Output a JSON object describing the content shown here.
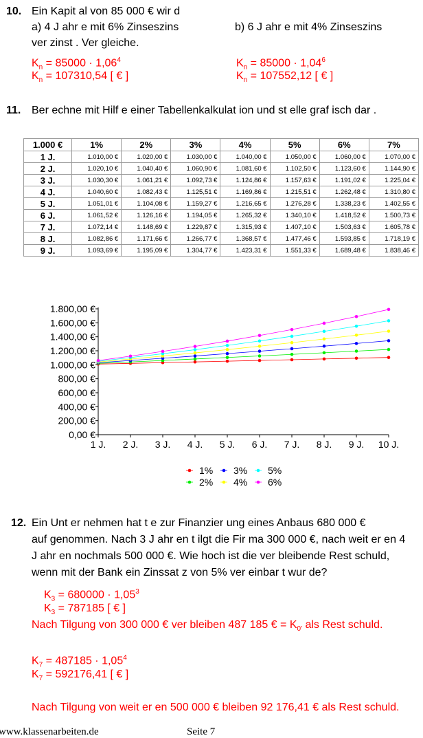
{
  "task10": {
    "number": "10.",
    "intro": "Ein Kapit al von 85 000 € wir d",
    "a_label": "a) 4 J ahr e mit 6% Zinseszins",
    "b_label": "b) 6 J ahr e mit 4% Zinseszins",
    "line3": "ver zinst . Ver gleiche.",
    "a_formula": {
      "lhs": "K",
      "sub": "n",
      "rhs": " = 85000 · 1,06",
      "sup": "4"
    },
    "a_result": {
      "lhs": "K",
      "sub": "n",
      "rhs": " = 107310,54 [ € ]"
    },
    "b_formula": {
      "lhs": "K",
      "sub": "n",
      "rhs": " = 85000 · 1,04",
      "sup": "6"
    },
    "b_result": {
      "lhs": "K",
      "sub": "n",
      "rhs": " = 107552,12 [ € ]"
    }
  },
  "task11": {
    "number": "11.",
    "text": "Ber echne mit Hilf e einer Tabellenkalkulat ion und st elle graf isch dar ."
  },
  "table": {
    "corner": "1.000 €",
    "columns": [
      "1%",
      "2%",
      "3%",
      "4%",
      "5%",
      "6%",
      "7%"
    ],
    "rows": [
      {
        "label": "1 J.",
        "values": [
          "1.010,00 €",
          "1.020,00 €",
          "1.030,00 €",
          "1.040,00 €",
          "1.050,00 €",
          "1.060,00 €",
          "1.070,00 €"
        ]
      },
      {
        "label": "2 J.",
        "values": [
          "1.020,10 €",
          "1.040,40 €",
          "1.060,90 €",
          "1.081,60 €",
          "1.102,50 €",
          "1.123,60 €",
          "1.144,90 €"
        ]
      },
      {
        "label": "3 J.",
        "values": [
          "1.030,30 €",
          "1.061,21 €",
          "1.092,73 €",
          "1.124,86 €",
          "1.157,63 €",
          "1.191,02 €",
          "1.225,04 €"
        ]
      },
      {
        "label": "4 J.",
        "values": [
          "1.040,60 €",
          "1.082,43 €",
          "1.125,51 €",
          "1.169,86 €",
          "1.215,51 €",
          "1.262,48 €",
          "1.310,80 €"
        ]
      },
      {
        "label": "5 J.",
        "values": [
          "1.051,01 €",
          "1.104,08 €",
          "1.159,27 €",
          "1.216,65 €",
          "1.276,28 €",
          "1.338,23 €",
          "1.402,55 €"
        ]
      },
      {
        "label": "6 J.",
        "values": [
          "1.061,52 €",
          "1.126,16 €",
          "1.194,05 €",
          "1.265,32 €",
          "1.340,10 €",
          "1.418,52 €",
          "1.500,73 €"
        ]
      },
      {
        "label": "7 J.",
        "values": [
          "1.072,14 €",
          "1.148,69 €",
          "1.229,87 €",
          "1.315,93 €",
          "1.407,10 €",
          "1.503,63 €",
          "1.605,78 €"
        ]
      },
      {
        "label": "8 J.",
        "values": [
          "1.082,86 €",
          "1.171,66 €",
          "1.266,77 €",
          "1.368,57 €",
          "1.477,46 €",
          "1.593,85 €",
          "1.718,19 €"
        ]
      },
      {
        "label": "9 J.",
        "values": [
          "1.093,69 €",
          "1.195,09 €",
          "1.304,77 €",
          "1.423,31 €",
          "1.551,33 €",
          "1.689,48 €",
          "1.838,46 €"
        ]
      }
    ]
  },
  "chart_data": {
    "type": "line",
    "categories": [
      "1 J.",
      "2 J.",
      "3 J.",
      "4 J.",
      "5 J.",
      "6 J.",
      "7 J.",
      "8 J.",
      "9 J.",
      "10 J."
    ],
    "ylim": [
      0,
      1800
    ],
    "yticks": [
      0,
      200,
      400,
      600,
      800,
      1000,
      1200,
      1400,
      1600,
      1800
    ],
    "ytick_labels": [
      "0,00 €",
      "200,00 €",
      "400,00 €",
      "600,00 €",
      "800,00 €",
      "1.000,00 €",
      "1.200,00 €",
      "1.400,00 €",
      "1.600,00 €",
      "1.800,00 €"
    ],
    "legend_placement": "bottom",
    "series": [
      {
        "name": "1%",
        "color": "#ff0000",
        "values": [
          1010.0,
          1020.1,
          1030.3,
          1040.6,
          1051.01,
          1061.52,
          1072.14,
          1082.86,
          1093.69,
          1104.62
        ]
      },
      {
        "name": "2%",
        "color": "#00ee00",
        "values": [
          1020.0,
          1040.4,
          1061.21,
          1082.43,
          1104.08,
          1126.16,
          1148.69,
          1171.66,
          1195.09,
          1218.99
        ]
      },
      {
        "name": "3%",
        "color": "#0000ff",
        "values": [
          1030.0,
          1060.9,
          1092.73,
          1125.51,
          1159.27,
          1194.05,
          1229.87,
          1266.77,
          1304.77,
          1343.92
        ]
      },
      {
        "name": "4%",
        "color": "#ffff00",
        "values": [
          1040.0,
          1081.6,
          1124.86,
          1169.86,
          1216.65,
          1265.32,
          1315.93,
          1368.57,
          1423.31,
          1480.24
        ]
      },
      {
        "name": "5%",
        "color": "#00ffff",
        "values": [
          1050.0,
          1102.5,
          1157.63,
          1215.51,
          1276.28,
          1340.1,
          1407.1,
          1477.46,
          1551.33,
          1628.89
        ]
      },
      {
        "name": "6%",
        "color": "#ff00ff",
        "values": [
          1060.0,
          1123.6,
          1191.02,
          1262.48,
          1338.23,
          1418.52,
          1503.63,
          1593.85,
          1689.48,
          1790.85
        ]
      }
    ]
  },
  "task12": {
    "number": "12.",
    "lines": [
      "Ein Unt er nehmen hat t e zur Finanzier ung eines Anbaus 680 000 €",
      "auf genommen. Nach 3 J ahr en t ilgt die Fir ma 300 000 €, nach weit er en 4",
      "J ahr en nochmals 500 000 €. Wie hoch ist die ver bleibende Rest schuld,",
      "wenn mit der Bank ein Zinssat z von 5% ver einbar t wur de?"
    ],
    "f1": {
      "lhs": "K",
      "sub": "3",
      "rhs": " = 680000 · 1,05",
      "sup": "3"
    },
    "f2": {
      "lhs": "K",
      "sub": "3",
      "rhs": " = 787185   [ € ]"
    },
    "note1_a": "Nach Tilgung von 300 000 € ver bleiben 487 185 € = K",
    "note1_sub": "0'",
    "note1_b": " als Rest schuld.",
    "f3": {
      "lhs": "K",
      "sub": "7",
      "rhs": " = 487185 · 1,05",
      "sup": "4"
    },
    "f4": {
      "lhs": "K",
      "sub": "7",
      "rhs": " = 592176,41 [ € ]"
    },
    "note2": "Nach Tilgung von weit er en 500 000 € bleiben 92 176,41 € als Rest schuld."
  },
  "footer": {
    "left": "www.klassenarbeiten.de",
    "right": "Seite 7"
  }
}
